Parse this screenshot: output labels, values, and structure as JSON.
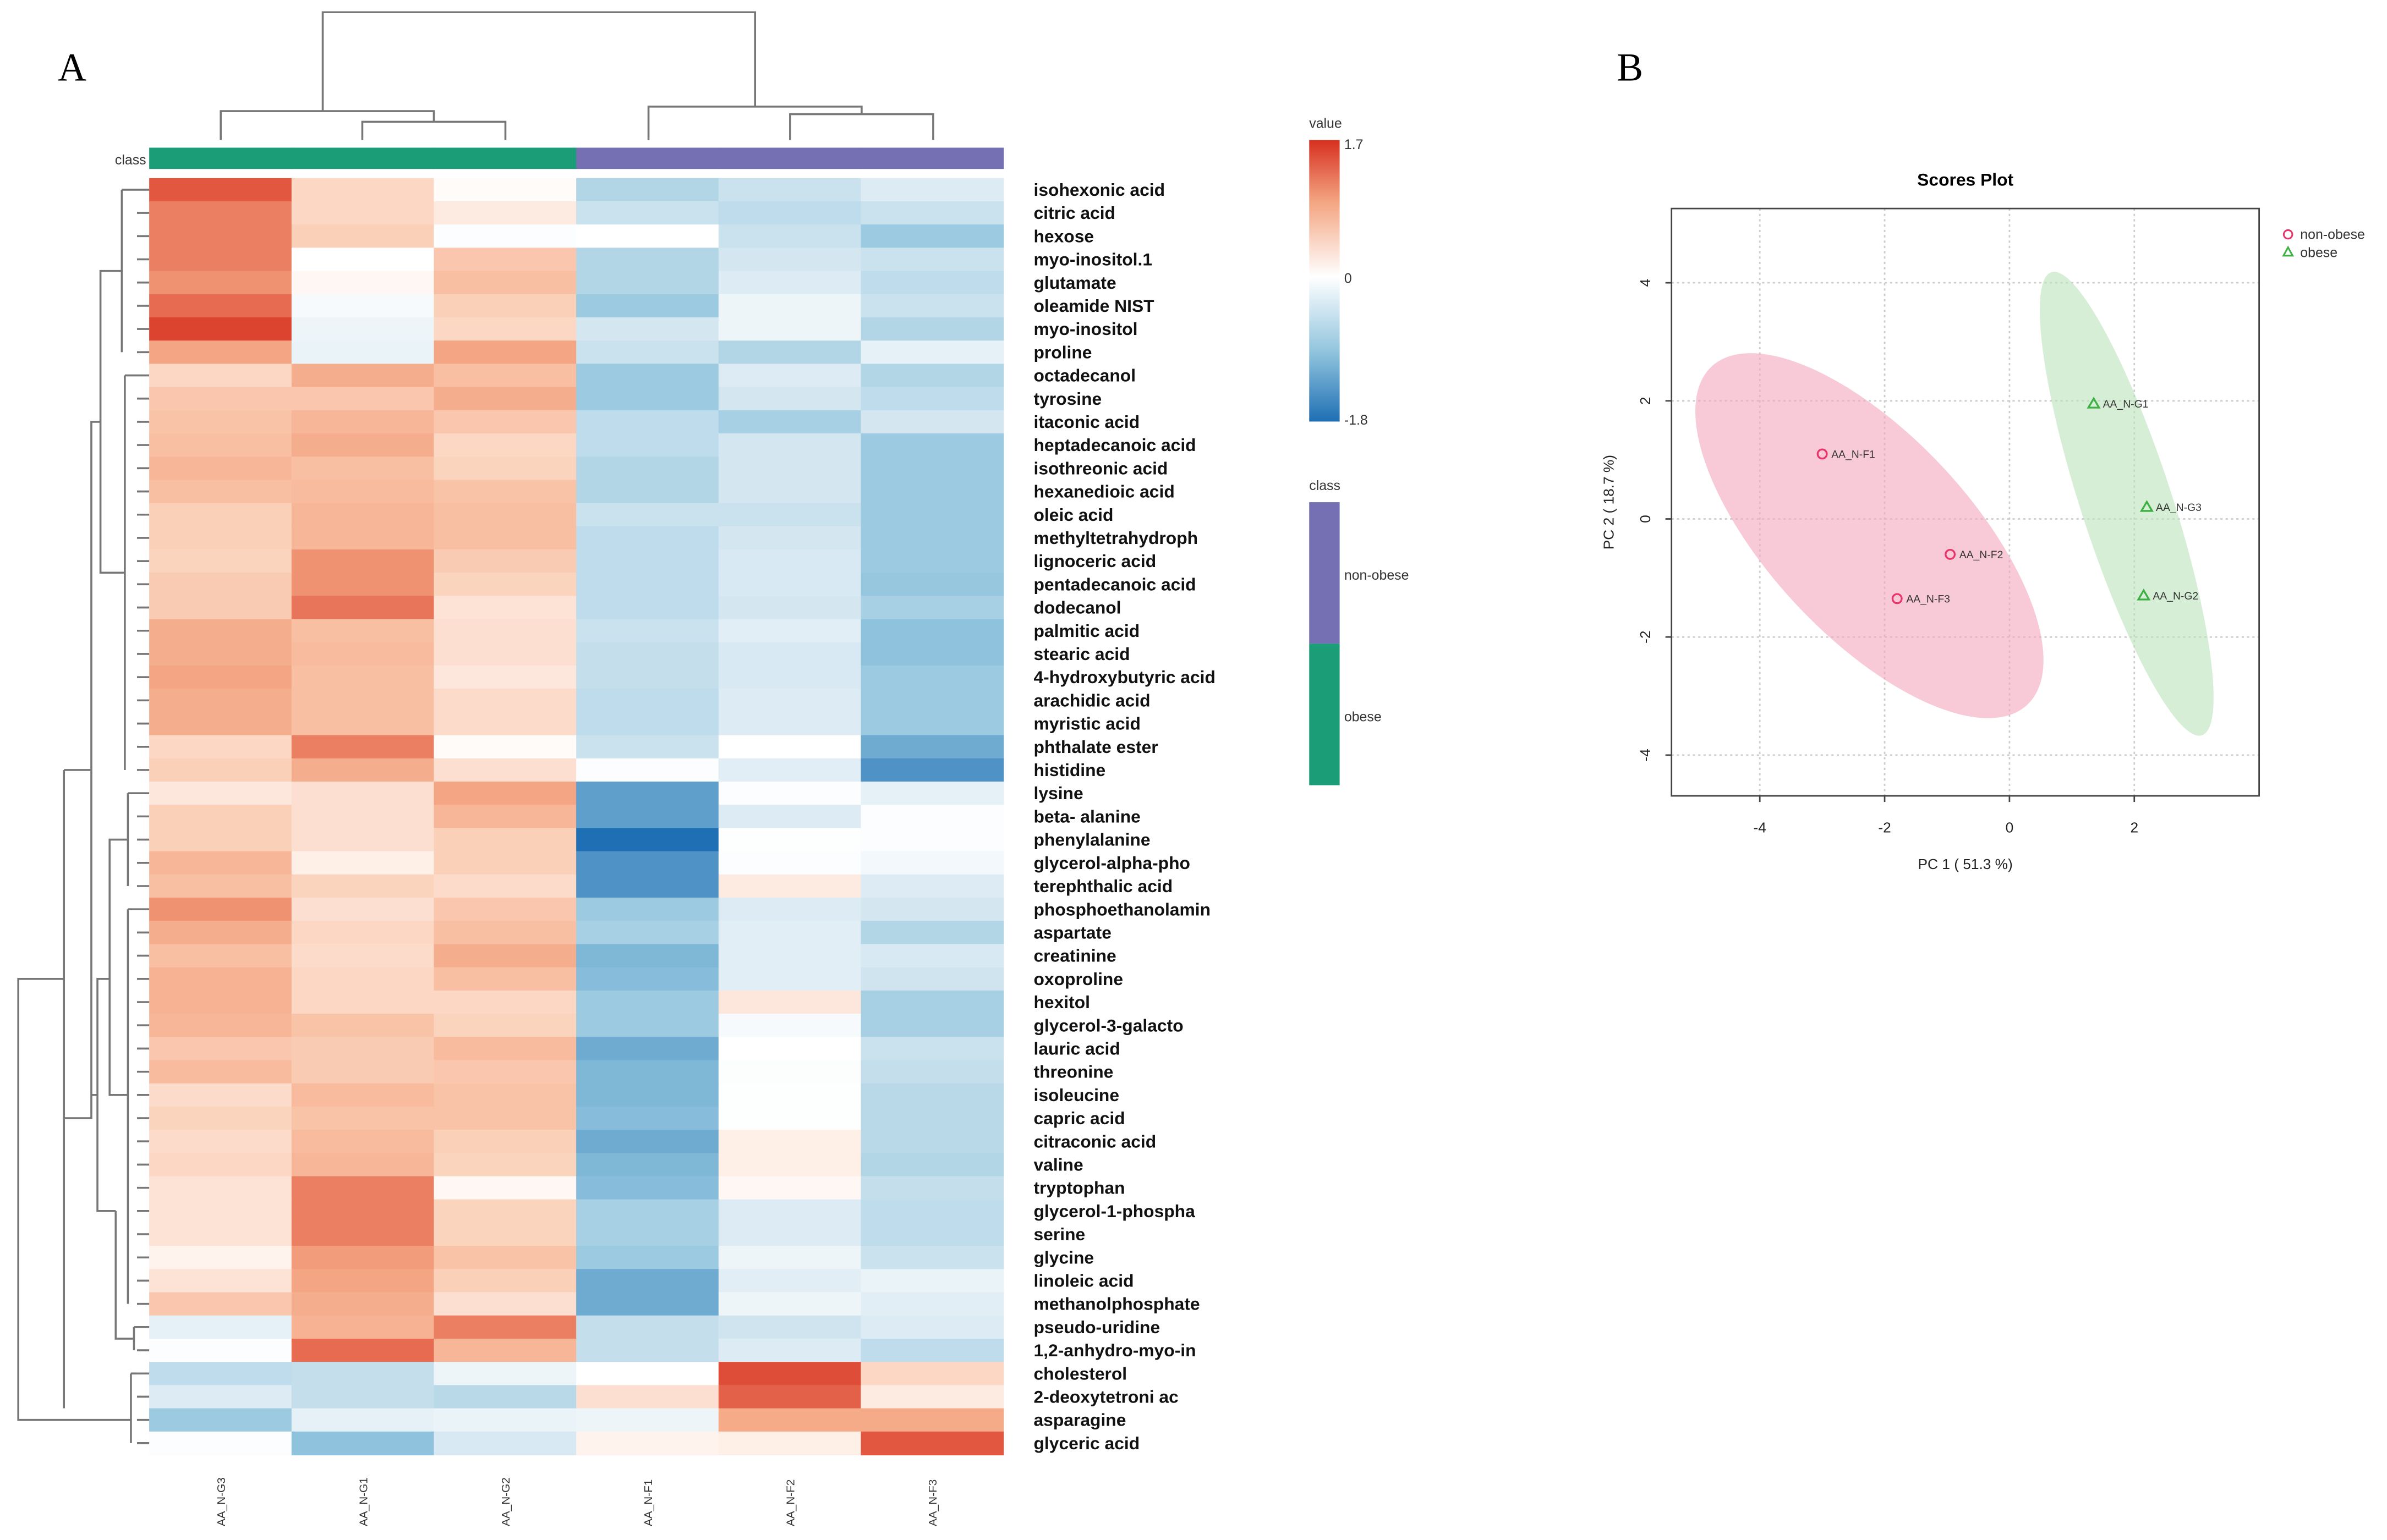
{
  "panels": {
    "a": "A",
    "b": "B"
  },
  "chart_data": [
    {
      "type": "heatmap",
      "panel": "A",
      "class_label": "class",
      "columns": [
        "AA_N-G3",
        "AA_N-G1",
        "AA_N-G2",
        "AA_N-F1",
        "AA_N-F2",
        "AA_N-F3"
      ],
      "column_class": [
        "obese",
        "obese",
        "obese",
        "non-obese",
        "non-obese",
        "non-obese"
      ],
      "rows": [
        "isohexonic acid",
        "citric acid",
        "hexose",
        "myo-inositol.1",
        "glutamate",
        "oleamide NIST",
        "myo-inositol",
        "proline",
        "octadecanol",
        "tyrosine",
        "itaconic acid",
        "heptadecanoic acid",
        "isothreonic acid",
        "hexanedioic acid",
        "oleic acid",
        "methyltetrahydroph",
        "lignoceric acid",
        "pentadecanoic acid",
        "dodecanol",
        "palmitic acid",
        "stearic acid",
        "4-hydroxybutyric acid",
        "arachidic acid",
        "myristic acid",
        "phthalate ester",
        "histidine",
        "lysine",
        "beta- alanine",
        "phenylalanine",
        "glycerol-alpha-pho",
        "terephthalic  acid",
        "phosphoethanolamin",
        "aspartate",
        "creatinine",
        "oxoproline",
        "hexitol",
        "glycerol-3-galacto",
        "lauric acid",
        "threonine",
        "isoleucine",
        "capric acid",
        "citraconic acid",
        "valine",
        "tryptophan",
        "glycerol-1-phospha",
        "serine",
        "glycine",
        "linoleic acid",
        "methanolphosphate",
        "pseudo-uridine",
        "1,2-anhydro-myo-in",
        "cholesterol",
        "2-deoxytetroni ac",
        "asparagine",
        "glyceric acid"
      ],
      "values": [
        [
          1.5,
          0.5,
          0.05,
          -0.8,
          -0.6,
          -0.4
        ],
        [
          1.3,
          0.5,
          0.25,
          -0.6,
          -0.7,
          -0.6
        ],
        [
          1.3,
          0.6,
          -0.05,
          0.0,
          -0.6,
          -1.0
        ],
        [
          1.3,
          0.0,
          0.7,
          -0.8,
          -0.5,
          -0.6
        ],
        [
          1.2,
          0.1,
          0.8,
          -0.8,
          -0.4,
          -0.7
        ],
        [
          1.4,
          -0.1,
          0.6,
          -1.0,
          -0.2,
          -0.6
        ],
        [
          1.6,
          -0.2,
          0.5,
          -0.5,
          -0.2,
          -0.8
        ],
        [
          1.1,
          -0.25,
          1.1,
          -0.6,
          -0.8,
          -0.3
        ],
        [
          0.5,
          1.0,
          0.8,
          -1.0,
          -0.4,
          -0.8
        ],
        [
          0.7,
          0.7,
          1.0,
          -1.0,
          -0.5,
          -0.7
        ],
        [
          0.75,
          0.9,
          0.7,
          -0.7,
          -0.9,
          -0.5
        ],
        [
          0.8,
          1.0,
          0.5,
          -0.7,
          -0.5,
          -1.0
        ],
        [
          0.9,
          0.8,
          0.55,
          -0.8,
          -0.5,
          -1.0
        ],
        [
          0.8,
          0.85,
          0.75,
          -0.8,
          -0.5,
          -1.0
        ],
        [
          0.6,
          0.9,
          0.8,
          -0.6,
          -0.6,
          -1.0
        ],
        [
          0.6,
          0.9,
          0.8,
          -0.7,
          -0.5,
          -1.0
        ],
        [
          0.55,
          1.2,
          0.65,
          -0.7,
          -0.45,
          -1.0
        ],
        [
          0.65,
          1.2,
          0.55,
          -0.7,
          -0.45,
          -1.05
        ],
        [
          0.65,
          1.35,
          0.35,
          -0.7,
          -0.5,
          -0.9
        ],
        [
          1.0,
          0.8,
          0.4,
          -0.6,
          -0.35,
          -1.1
        ],
        [
          1.0,
          0.85,
          0.4,
          -0.65,
          -0.45,
          -1.1
        ],
        [
          1.1,
          0.8,
          0.3,
          -0.65,
          -0.45,
          -1.0
        ],
        [
          1.0,
          0.8,
          0.45,
          -0.7,
          -0.4,
          -1.0
        ],
        [
          1.0,
          0.8,
          0.45,
          -0.7,
          -0.4,
          -1.0
        ],
        [
          0.5,
          1.3,
          0.05,
          -0.6,
          0.0,
          -1.3
        ],
        [
          0.6,
          1.0,
          0.4,
          -0.05,
          -0.35,
          -1.5
        ],
        [
          0.3,
          0.4,
          1.1,
          -1.4,
          -0.05,
          -0.3
        ],
        [
          0.6,
          0.4,
          0.9,
          -1.4,
          -0.4,
          -0.05
        ],
        [
          0.6,
          0.4,
          0.6,
          -1.8,
          -0.02,
          -0.05
        ],
        [
          0.9,
          0.2,
          0.6,
          -1.5,
          -0.05,
          -0.15
        ],
        [
          0.8,
          0.55,
          0.45,
          -1.5,
          0.25,
          -0.4
        ],
        [
          1.2,
          0.4,
          0.7,
          -1.0,
          -0.4,
          -0.5
        ],
        [
          1.0,
          0.5,
          0.8,
          -0.9,
          -0.35,
          -0.8
        ],
        [
          0.8,
          0.45,
          1.0,
          -1.2,
          -0.35,
          -0.45
        ],
        [
          0.95,
          0.5,
          0.8,
          -1.15,
          -0.35,
          -0.55
        ],
        [
          0.95,
          0.5,
          0.5,
          -1.0,
          0.3,
          -0.9
        ],
        [
          0.9,
          0.75,
          0.55,
          -1.0,
          -0.1,
          -0.9
        ],
        [
          0.7,
          0.65,
          0.85,
          -1.3,
          0.0,
          -0.6
        ],
        [
          0.85,
          0.65,
          0.7,
          -1.2,
          -0.03,
          -0.65
        ],
        [
          0.45,
          0.85,
          0.75,
          -1.2,
          -0.02,
          -0.75
        ],
        [
          0.55,
          0.75,
          0.75,
          -1.15,
          -0.02,
          -0.75
        ],
        [
          0.45,
          0.85,
          0.6,
          -1.3,
          0.2,
          -0.75
        ],
        [
          0.5,
          0.9,
          0.55,
          -1.2,
          0.2,
          -0.8
        ],
        [
          0.35,
          1.3,
          0.1,
          -1.15,
          0.1,
          -0.65
        ],
        [
          0.35,
          1.3,
          0.55,
          -0.9,
          -0.4,
          -0.7
        ],
        [
          0.35,
          1.3,
          0.55,
          -0.9,
          -0.4,
          -0.7
        ],
        [
          0.15,
          1.15,
          0.75,
          -1.0,
          -0.2,
          -0.6
        ],
        [
          0.35,
          1.1,
          0.6,
          -1.3,
          -0.35,
          -0.25
        ],
        [
          0.7,
          1.0,
          0.4,
          -1.3,
          -0.2,
          -0.35
        ],
        [
          -0.3,
          0.95,
          1.3,
          -0.65,
          -0.55,
          -0.4
        ],
        [
          -0.05,
          1.4,
          0.9,
          -0.65,
          -0.4,
          -0.7
        ],
        [
          -0.7,
          -0.65,
          -0.2,
          0.0,
          1.55,
          0.5
        ],
        [
          -0.4,
          -0.65,
          -0.75,
          0.4,
          1.45,
          0.25
        ],
        [
          -1.0,
          -0.3,
          -0.25,
          -0.2,
          1.05,
          1.05
        ],
        [
          -0.05,
          -1.1,
          -0.45,
          0.15,
          0.2,
          1.5
        ]
      ],
      "value_legend": {
        "title": "value",
        "max": 1.7,
        "mid": 0,
        "min": -1.8,
        "max_label": "1.7",
        "mid_label": "0",
        "min_label": "-1.8"
      },
      "class_legend": {
        "title": "class",
        "items": [
          {
            "name": "non-obese",
            "color": "#7570b3"
          },
          {
            "name": "obese",
            "color": "#1b9e77"
          }
        ]
      },
      "colors": {
        "low": "#1f6fb4",
        "mid": "#ffffff",
        "high": "#d7301f"
      }
    },
    {
      "type": "scatter",
      "panel": "B",
      "title": "Scores Plot",
      "xlabel": "PC 1 ( 51.3 %)",
      "ylabel": "PC 2 ( 18.7 %)",
      "xlim": [
        -5.4,
        4.0
      ],
      "ylim": [
        -4.8,
        5.2
      ],
      "xticks": [
        -4,
        -2,
        0,
        2
      ],
      "yticks": [
        -4,
        -2,
        0,
        2,
        4
      ],
      "grid": true,
      "legend_position": "top-right, outside",
      "series": [
        {
          "name": "non-obese",
          "marker": "circle",
          "color": "#e8336b",
          "fill": "#f4a7bc",
          "points": [
            {
              "label": "AA_N-F1",
              "x": -3.0,
              "y": 1.1
            },
            {
              "label": "AA_N-F2",
              "x": -0.95,
              "y": -0.6
            },
            {
              "label": "AA_N-F3",
              "x": -1.8,
              "y": -1.35
            }
          ]
        },
        {
          "name": "obese",
          "marker": "triangle",
          "color": "#3cb043",
          "fill": "#b9e2b9",
          "points": [
            {
              "label": "AA_N-G1",
              "x": 1.35,
              "y": 1.95
            },
            {
              "label": "AA_N-G3",
              "x": 2.2,
              "y": 0.2
            },
            {
              "label": "AA_N-G2",
              "x": 2.15,
              "y": -1.3
            }
          ]
        }
      ]
    }
  ]
}
